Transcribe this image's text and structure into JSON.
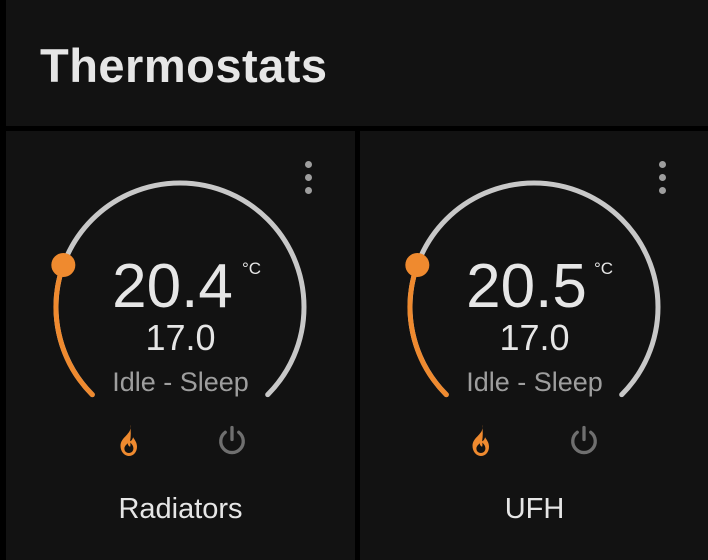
{
  "header": {
    "title": "Thermostats"
  },
  "colors": {
    "accent": "#ef8a2f",
    "track": "#c8c8c8",
    "inactive_icon": "#6f6f6f"
  },
  "thermostats": [
    {
      "name": "Radiators",
      "current": "20.4",
      "unit": "°C",
      "target": "17.0",
      "status": "Idle - Sleep",
      "setpoint_fraction": 0.24,
      "modes": [
        "flame-icon",
        "power-icon"
      ],
      "active_mode": "heat"
    },
    {
      "name": "UFH",
      "current": "20.5",
      "unit": "°C",
      "target": "17.0",
      "status": "Idle - Sleep",
      "setpoint_fraction": 0.24,
      "modes": [
        "flame-icon",
        "power-icon"
      ],
      "active_mode": "heat"
    }
  ]
}
